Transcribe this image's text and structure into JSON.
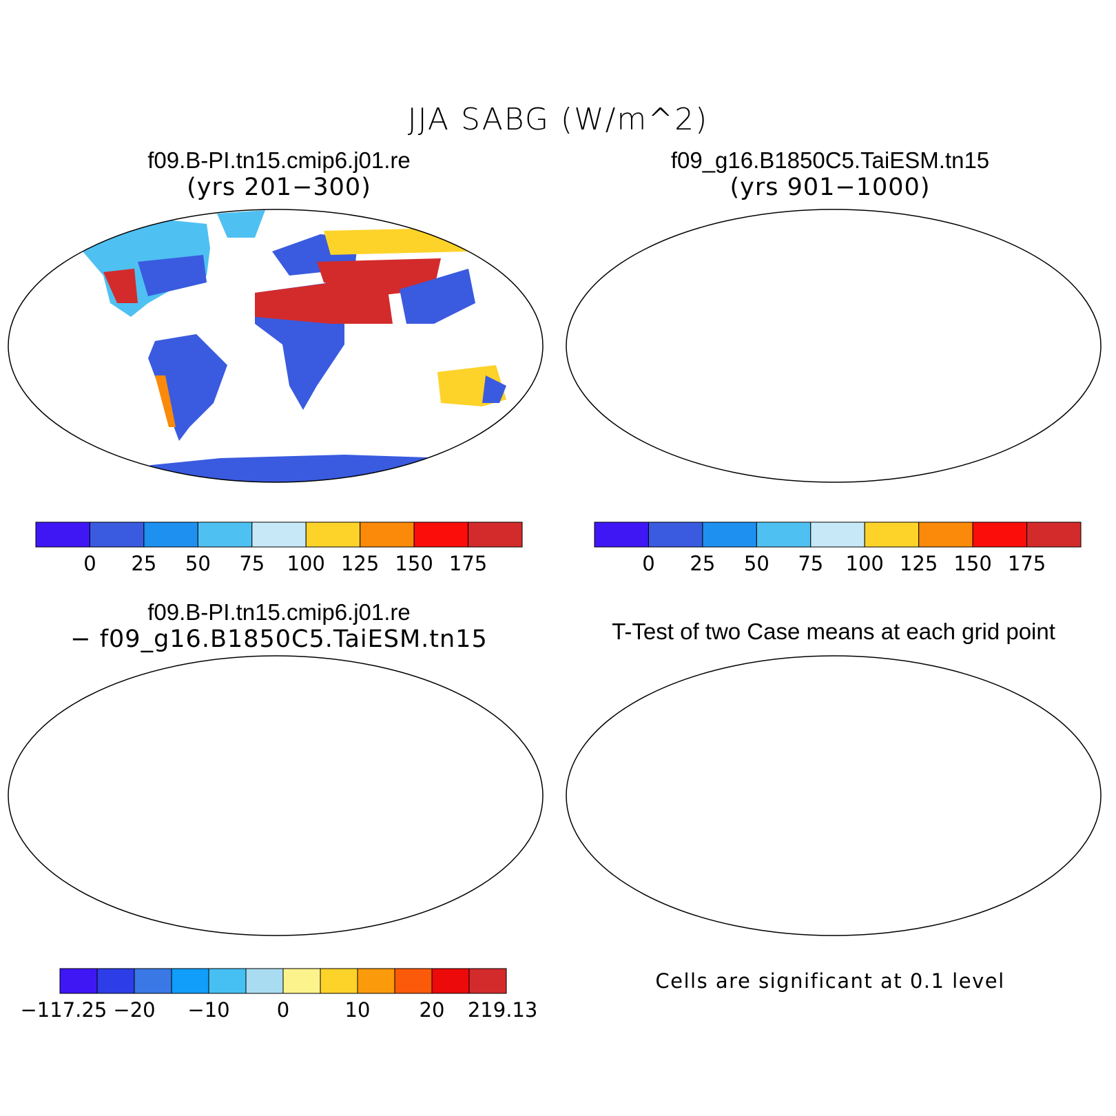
{
  "title": "JJA SABG (W/m^2)",
  "panels": [
    {
      "title": "f09.B-PI.tn15.cmip6.j01.re",
      "subtitle": "(yrs 201−300)"
    },
    {
      "title": "f09_g16.B1850C5.TaiESM.tn15",
      "subtitle": "(yrs 901−1000)"
    },
    {
      "title": "f09.B-PI.tn15.cmip6.j01.re",
      "subtitle": "− f09_g16.B1850C5.TaiESM.tn15"
    },
    {
      "title": "T-Test of two Case means at each grid point",
      "subtitle": ""
    }
  ],
  "colorbar_top": {
    "labels": [
      "0",
      "25",
      "50",
      "75",
      "100",
      "125",
      "150",
      "175"
    ],
    "colors": [
      "#3f17f5",
      "#3a5bdf",
      "#1e90f0",
      "#4fc0f2",
      "#c7e8f7",
      "#fdd32a",
      "#fb8a0a",
      "#fb0d0a",
      "#d32b2b"
    ]
  },
  "colorbar_diff": {
    "labels": [
      "−117.25",
      "−20",
      "−10",
      "0",
      "10",
      "20",
      "219.13"
    ],
    "colors": [
      "#3f17f5",
      "#2d3ee9",
      "#3a78e6",
      "#119dfa",
      "#46bff3",
      "#a9dcf0",
      "#fdf38c",
      "#fdd32a",
      "#fb9a0a",
      "#fb5a0a",
      "#ec0a0a",
      "#d32b2b"
    ]
  },
  "footnote": "Cells are significant at 0.1 level",
  "map_colors": {
    "hot": "#d32b2b",
    "warm": "#fb8a0a",
    "mid": "#4fc0f2",
    "cool": "#3a5bdf",
    "yellow": "#fdf38c",
    "sig": "#f50a0a"
  }
}
